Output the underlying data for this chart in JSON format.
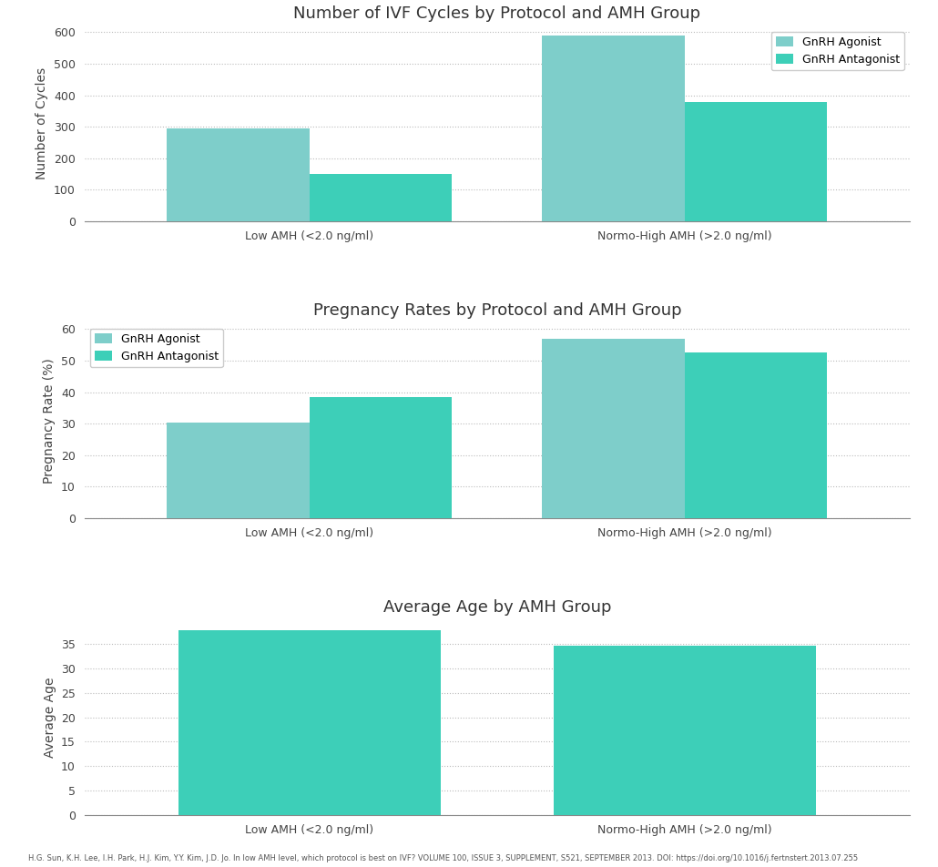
{
  "chart1": {
    "title": "Number of IVF Cycles by Protocol and AMH Group",
    "ylabel": "Number of Cycles",
    "categories": [
      "Low AMH (<2.0 ng/ml)",
      "Normo-High AMH (>2.0 ng/ml)"
    ],
    "agonist_values": [
      295,
      590
    ],
    "antagonist_values": [
      150,
      378
    ],
    "ylim": [
      0,
      620
    ],
    "yticks": [
      0,
      100,
      200,
      300,
      400,
      500,
      600
    ]
  },
  "chart2": {
    "title": "Pregnancy Rates by Protocol and AMH Group",
    "ylabel": "Pregnancy Rate (%)",
    "categories": [
      "Low AMH (<2.0 ng/ml)",
      "Normo-High AMH (>2.0 ng/ml)"
    ],
    "agonist_values": [
      30.3,
      57.0
    ],
    "antagonist_values": [
      38.5,
      52.7
    ],
    "ylim": [
      0,
      62
    ],
    "yticks": [
      0,
      10,
      20,
      30,
      40,
      50,
      60
    ]
  },
  "chart3": {
    "title": "Average Age by AMH Group",
    "ylabel": "Average Age",
    "categories": [
      "Low AMH (<2.0 ng/ml)",
      "Normo-High AMH (>2.0 ng/ml)"
    ],
    "values": [
      37.8,
      34.7
    ],
    "ylim": [
      0,
      40
    ],
    "yticks": [
      0,
      5,
      10,
      15,
      20,
      25,
      30,
      35
    ]
  },
  "color_agonist": "#7ECECA",
  "color_antagonist": "#3DCFB8",
  "color_age": "#3DCFB8",
  "legend_labels": [
    "GnRH Agonist",
    "GnRH Antagonist"
  ],
  "bar_width": 0.38,
  "background_color": "#ffffff",
  "grid_color": "#bbbbbb",
  "title_fontsize": 13,
  "label_fontsize": 10,
  "tick_fontsize": 9,
  "footnote": "H.G. Sun, K.H. Lee, I.H. Park, H.J. Kim, Y.Y. Kim, J.D. Jo. In low AMH level, which protocol is best on IVF? VOLUME 100, ISSUE 3, SUPPLEMENT, S521, SEPTEMBER 2013. DOI: https://doi.org/10.1016/j.fertnstert.2013.07.255"
}
